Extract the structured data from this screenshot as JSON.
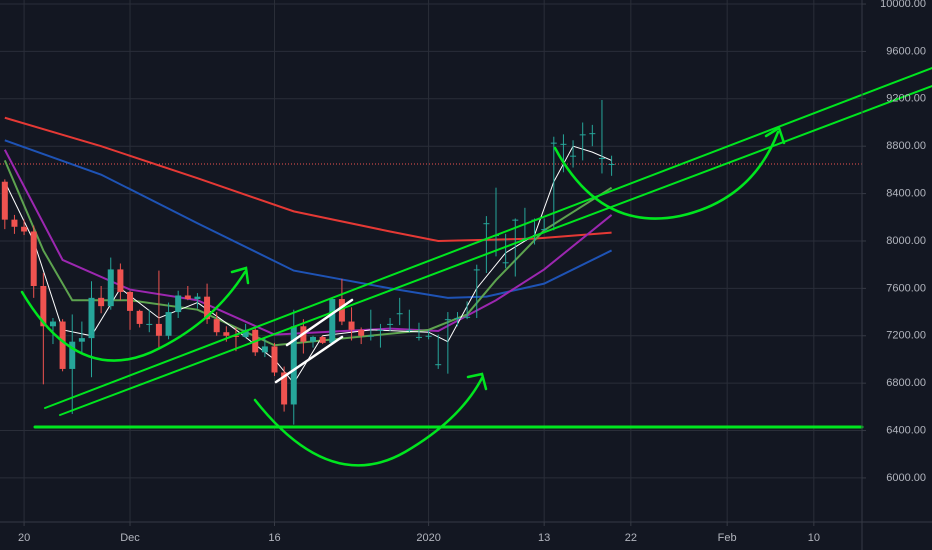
{
  "chart_data": {
    "type": "candlestick",
    "open": [
      8500,
      8180,
      8120,
      8080,
      7620,
      7280,
      7320,
      6920,
      7150,
      7180,
      7520,
      7450,
      7760,
      7570,
      7410,
      7300,
      7300,
      7200,
      7400,
      7540,
      7510,
      7530,
      7340,
      7230,
      7200,
      7190,
      7250,
      7060,
      7110,
      6890,
      6620,
      7280,
      7150,
      7190,
      7140,
      7510,
      7320,
      7250,
      7200,
      7250,
      7300,
      7390,
      7250,
      7190,
      7200,
      6960,
      7340,
      7350,
      7360,
      7760,
      8150,
      8050,
      7820,
      8180,
      8020,
      8180,
      8100,
      8830,
      8820,
      8720,
      8900,
      8910,
      8700,
      8650
    ],
    "high": [
      8520,
      8220,
      8180,
      8130,
      7730,
      7350,
      7340,
      7380,
      7320,
      7660,
      7620,
      7860,
      7810,
      7580,
      7420,
      7420,
      7750,
      7480,
      7580,
      7620,
      7560,
      7640,
      7400,
      7280,
      7270,
      7300,
      7270,
      7190,
      7140,
      6940,
      7420,
      7340,
      7200,
      7200,
      7520,
      7680,
      7440,
      7270,
      7420,
      7300,
      7350,
      7520,
      7420,
      7310,
      7250,
      7210,
      7400,
      7400,
      7490,
      7800,
      8210,
      8450,
      8060,
      8190,
      8280,
      8190,
      8190,
      8880,
      8900,
      8850,
      9000,
      8980,
      9190,
      8720
    ],
    "low": [
      8100,
      8060,
      8050,
      7520,
      6790,
      7130,
      6900,
      6540,
      7050,
      6850,
      7390,
      7420,
      7500,
      7250,
      7270,
      7230,
      7100,
      7170,
      7350,
      7500,
      7430,
      7300,
      7200,
      7150,
      7070,
      7180,
      7030,
      7020,
      6860,
      6560,
      6450,
      7050,
      7100,
      7130,
      7130,
      7290,
      7160,
      7130,
      7160,
      7100,
      7240,
      7290,
      7230,
      7160,
      7170,
      6920,
      6880,
      7280,
      7340,
      7350,
      7730,
      7870,
      7770,
      7700,
      8000,
      7970,
      8070,
      8090,
      8580,
      8620,
      8680,
      8800,
      8570,
      8550
    ],
    "close": [
      8180,
      8120,
      8080,
      7620,
      7280,
      7320,
      6920,
      7150,
      7180,
      7520,
      7450,
      7760,
      7570,
      7410,
      7300,
      7300,
      7200,
      7400,
      7540,
      7510,
      7530,
      7340,
      7230,
      7200,
      7190,
      7250,
      7060,
      7110,
      6890,
      6620,
      7280,
      7150,
      7190,
      7140,
      7510,
      7320,
      7250,
      7200,
      7200,
      7250,
      7300,
      7390,
      7250,
      7190,
      7200,
      6960,
      7340,
      7350,
      7360,
      7760,
      8150,
      8050,
      7820,
      8180,
      8020,
      8180,
      8100,
      8830,
      8820,
      8720,
      8900,
      8910,
      8700,
      8650
    ],
    "up_color": "#26a69a",
    "down_color": "#ef5350",
    "overlays": [
      {
        "color": "#e53935",
        "x": [
          0,
          10,
          20,
          30,
          40,
          45,
          55,
          63
        ],
        "values": [
          9040,
          8800,
          8530,
          8250,
          8080,
          8000,
          8020,
          8070
        ]
      },
      {
        "color": "#1e53b5",
        "x": [
          0,
          10,
          20,
          30,
          40,
          46,
          50,
          56,
          63
        ],
        "values": [
          8850,
          8560,
          8150,
          7750,
          7600,
          7520,
          7530,
          7640,
          7920
        ]
      },
      {
        "color": "#9c27b0",
        "x": [
          0,
          6,
          13,
          20,
          28,
          40,
          45,
          51,
          56,
          63
        ],
        "values": [
          8770,
          7840,
          7590,
          7500,
          7210,
          7260,
          7240,
          7500,
          7760,
          8220
        ]
      },
      {
        "color": "#5da34f",
        "x": [
          0,
          4,
          7,
          13,
          20,
          28,
          44,
          48,
          51,
          56,
          63
        ],
        "values": [
          8680,
          7920,
          7500,
          7500,
          7420,
          7120,
          7250,
          7380,
          7670,
          8090,
          8450
        ]
      },
      {
        "color": "#ffffff",
        "x": [
          0,
          3,
          6,
          9,
          12,
          16,
          20,
          24,
          28,
          30,
          33,
          38,
          44,
          46,
          49,
          52,
          55,
          57,
          59,
          61,
          63
        ],
        "values": [
          8500,
          8000,
          7250,
          7200,
          7600,
          7350,
          7480,
          7250,
          7000,
          6800,
          7200,
          7250,
          7230,
          7150,
          7600,
          7900,
          8050,
          8500,
          8800,
          8750,
          8680
        ]
      }
    ],
    "last_price": 8650,
    "last_price_color": "#ef5350",
    "xlim": [
      -0.5,
      89
    ],
    "xticks": [
      {
        "value": 2,
        "label": "20"
      },
      {
        "value": 13,
        "label": "Dec"
      },
      {
        "value": 28,
        "label": "16"
      },
      {
        "value": 44,
        "label": "2020"
      },
      {
        "value": 56,
        "label": "13"
      },
      {
        "value": 65,
        "label": "22"
      },
      {
        "value": 75,
        "label": "Feb"
      },
      {
        "value": 84,
        "label": "10"
      }
    ],
    "ylim": [
      5628,
      10034
    ],
    "yticks": [
      {
        "value": 6000,
        "label": "6000.00"
      },
      {
        "value": 6400,
        "label": "6400.00"
      },
      {
        "value": 6800,
        "label": "6800.00"
      },
      {
        "value": 7200,
        "label": "7200.00"
      },
      {
        "value": 7600,
        "label": "7600.00"
      },
      {
        "value": 8000,
        "label": "8000.00"
      },
      {
        "value": 8400,
        "label": "8400.00"
      },
      {
        "value": 8800,
        "label": "8800.00"
      },
      {
        "value": 9200,
        "label": "9200.00"
      },
      {
        "value": 9600,
        "label": "9600.00"
      },
      {
        "value": 10000,
        "label": "10000.00"
      }
    ],
    "grid": true
  }
}
